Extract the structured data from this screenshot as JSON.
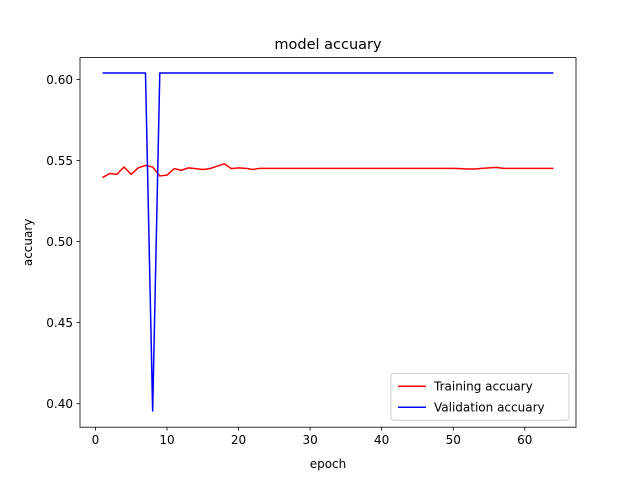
{
  "chart_data": {
    "type": "line",
    "title": "model accuary",
    "xlabel": "epoch",
    "ylabel": "accuary",
    "xlim": [
      -2.15,
      67.15
    ],
    "ylim": [
      0.3855,
      0.6135
    ],
    "xticks": [
      0,
      10,
      20,
      30,
      40,
      50,
      60
    ],
    "yticks": [
      0.4,
      0.45,
      0.5,
      0.55,
      0.6
    ],
    "ytick_labels": [
      "0.40",
      "0.45",
      "0.50",
      "0.55",
      "0.60"
    ],
    "grid": false,
    "legend_position": "lower right",
    "x": [
      1,
      2,
      3,
      4,
      5,
      6,
      7,
      8,
      9,
      10,
      11,
      12,
      13,
      14,
      15,
      16,
      17,
      18,
      19,
      20,
      21,
      22,
      23,
      24,
      25,
      26,
      27,
      28,
      29,
      30,
      31,
      32,
      33,
      34,
      35,
      36,
      37,
      38,
      39,
      40,
      41,
      42,
      43,
      44,
      45,
      46,
      47,
      48,
      49,
      50,
      51,
      52,
      53,
      54,
      55,
      56,
      57,
      58,
      59,
      60,
      61,
      62,
      63,
      64
    ],
    "series": [
      {
        "name": "Training accuary",
        "color": "#ff0000",
        "values": [
          0.5395,
          0.542,
          0.5415,
          0.546,
          0.5415,
          0.5455,
          0.547,
          0.546,
          0.5405,
          0.541,
          0.545,
          0.544,
          0.5455,
          0.545,
          0.5445,
          0.545,
          0.5465,
          0.548,
          0.545,
          0.5455,
          0.5452,
          0.5445,
          0.5452,
          0.5452,
          0.5452,
          0.5452,
          0.5452,
          0.5452,
          0.5452,
          0.5452,
          0.5452,
          0.5452,
          0.5452,
          0.5452,
          0.5452,
          0.5452,
          0.5452,
          0.5452,
          0.5452,
          0.5452,
          0.5452,
          0.5452,
          0.5452,
          0.5452,
          0.5452,
          0.5452,
          0.5452,
          0.5452,
          0.5452,
          0.5452,
          0.545,
          0.5448,
          0.5448,
          0.5452,
          0.5455,
          0.5458,
          0.5452,
          0.5452,
          0.5452,
          0.5452,
          0.5452,
          0.5452,
          0.5452,
          0.5452
        ]
      },
      {
        "name": "Validation accuary",
        "color": "#0000ff",
        "values": [
          0.604,
          0.604,
          0.604,
          0.604,
          0.604,
          0.604,
          0.604,
          0.3955,
          0.604,
          0.604,
          0.604,
          0.604,
          0.604,
          0.604,
          0.604,
          0.604,
          0.604,
          0.604,
          0.604,
          0.604,
          0.604,
          0.604,
          0.604,
          0.604,
          0.604,
          0.604,
          0.604,
          0.604,
          0.604,
          0.604,
          0.604,
          0.604,
          0.604,
          0.604,
          0.604,
          0.604,
          0.604,
          0.604,
          0.604,
          0.604,
          0.604,
          0.604,
          0.604,
          0.604,
          0.604,
          0.604,
          0.604,
          0.604,
          0.604,
          0.604,
          0.604,
          0.604,
          0.604,
          0.604,
          0.604,
          0.604,
          0.604,
          0.604,
          0.604,
          0.604,
          0.604,
          0.604,
          0.604,
          0.604
        ]
      }
    ]
  }
}
